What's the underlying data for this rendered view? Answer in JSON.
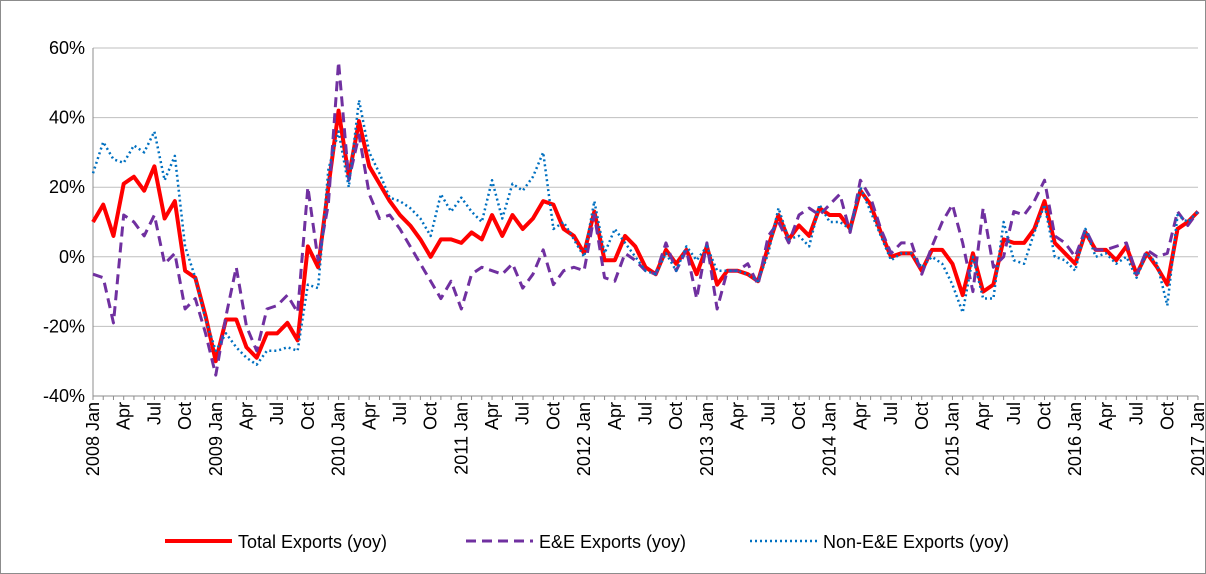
{
  "chart_data": {
    "type": "line",
    "categories": [
      "2008 Jan",
      null,
      null,
      "Apr",
      null,
      null,
      "Jul",
      null,
      null,
      "Oct",
      null,
      null,
      "2009 Jan",
      null,
      null,
      "Apr",
      null,
      null,
      "Jul",
      null,
      null,
      "Oct",
      null,
      null,
      "2010 Jan",
      null,
      null,
      "Apr",
      null,
      null,
      "Jul",
      null,
      null,
      "Oct",
      null,
      null,
      "2011 Jan",
      null,
      null,
      "Apr",
      null,
      null,
      "Jul",
      null,
      null,
      "Oct",
      null,
      null,
      "2012 Jan",
      null,
      null,
      "Apr",
      null,
      null,
      "Jul",
      null,
      null,
      "Oct",
      null,
      null,
      "2013 Jan",
      null,
      null,
      "Apr",
      null,
      null,
      "Jul",
      null,
      null,
      "Oct",
      null,
      null,
      "2014 Jan",
      null,
      null,
      "Apr",
      null,
      null,
      "Jul",
      null,
      null,
      "Oct",
      null,
      null,
      "2015 Jan",
      null,
      null,
      "Apr",
      null,
      null,
      "Jul",
      null,
      null,
      "Oct",
      null,
      null,
      "2016 Jan",
      null,
      null,
      "Apr",
      null,
      null,
      "Jul",
      null,
      null,
      "Oct",
      null,
      null,
      "2017 Jan"
    ],
    "series": [
      {
        "name": "Total Exports (yoy)",
        "color": "#ff0000",
        "style": "solid",
        "values": [
          10,
          15,
          6,
          21,
          23,
          19,
          26,
          11,
          16,
          -4,
          -6,
          -17,
          -30,
          -18,
          -18,
          -26,
          -29,
          -22,
          -22,
          -19,
          -24,
          3,
          -3,
          20,
          42,
          23,
          39,
          26,
          21,
          16,
          12,
          9,
          5,
          0,
          5,
          5,
          4,
          7,
          5,
          12,
          6,
          12,
          8,
          11,
          16,
          15,
          8,
          6,
          1,
          13,
          -1,
          -1,
          6,
          3,
          -3,
          -5,
          2,
          -2,
          2,
          -5,
          3,
          -8,
          -4,
          -4,
          -5,
          -7,
          3,
          12,
          5,
          9,
          6,
          14,
          12,
          12,
          8,
          19,
          15,
          7,
          0,
          1,
          1,
          -4,
          2,
          2,
          -2,
          -11,
          1,
          -10,
          -8,
          5,
          4,
          4,
          8,
          16,
          4,
          1,
          -2,
          7,
          2,
          2,
          -1,
          3,
          -5,
          1,
          -3,
          -8,
          8,
          10,
          13
        ]
      },
      {
        "name": "E&E Exports (yoy)",
        "color": "#7030a0",
        "style": "dashed",
        "values": [
          -5,
          -6,
          -19,
          12,
          10,
          6,
          12,
          -2,
          1,
          -15,
          -12,
          -22,
          -34,
          -17,
          -3,
          -20,
          -27,
          -15,
          -14,
          -11,
          -16,
          20,
          -1,
          15,
          56,
          22,
          35,
          18,
          11,
          12,
          8,
          3,
          -2,
          -7,
          -12,
          -7,
          -15,
          -5,
          -3,
          -4,
          -5,
          -2,
          -9,
          -5,
          2,
          -8,
          -4,
          -3,
          -4,
          12,
          -6,
          -7,
          1,
          -1,
          -4,
          -5,
          4,
          -4,
          2,
          -12,
          4,
          -15,
          -4,
          -4,
          -2,
          -8,
          6,
          10,
          4,
          12,
          14,
          12,
          15,
          18,
          7,
          22,
          17,
          8,
          1,
          4,
          4,
          -5,
          3,
          10,
          15,
          4,
          -10,
          14,
          -3,
          0,
          13,
          12,
          16,
          22,
          6,
          4,
          0,
          8,
          2,
          2,
          3,
          4,
          -5,
          2,
          0,
          1,
          13,
          9,
          13
        ]
      },
      {
        "name": "Non-E&E Exports (yoy)",
        "color": "#0070c0",
        "style": "dotted",
        "values": [
          24,
          33,
          28,
          27,
          32,
          30,
          36,
          22,
          29,
          3,
          -6,
          -18,
          -27,
          -22,
          -26,
          -29,
          -31,
          -27,
          -27,
          -26,
          -27,
          -8,
          -9,
          25,
          36,
          20,
          45,
          30,
          24,
          17,
          16,
          14,
          11,
          6,
          18,
          13,
          17,
          13,
          10,
          22,
          11,
          21,
          19,
          23,
          30,
          8,
          10,
          5,
          0,
          16,
          1,
          8,
          4,
          0,
          -4,
          -5,
          1,
          -4,
          3,
          -1,
          3,
          -4,
          -4,
          -4,
          -5,
          -7,
          1,
          14,
          5,
          6,
          3,
          15,
          10,
          10,
          8,
          20,
          13,
          6,
          -1,
          1,
          1,
          -3,
          0,
          -2,
          -8,
          -16,
          0,
          -12,
          -12,
          10,
          -1,
          -2,
          7,
          15,
          0,
          -1,
          -4,
          8,
          0,
          1,
          -2,
          0,
          -6,
          1,
          -2,
          -14,
          12,
          10,
          13
        ]
      }
    ],
    "ylim": [
      -40,
      60
    ],
    "yticks": [
      {
        "value": -40,
        "label": "-40%"
      },
      {
        "value": -20,
        "label": "-20%"
      },
      {
        "value": 0,
        "label": "0%"
      },
      {
        "value": 20,
        "label": "20%"
      },
      {
        "value": 40,
        "label": "40%"
      },
      {
        "value": 60,
        "label": "60%"
      }
    ],
    "grid": true,
    "legend": "bottom"
  }
}
